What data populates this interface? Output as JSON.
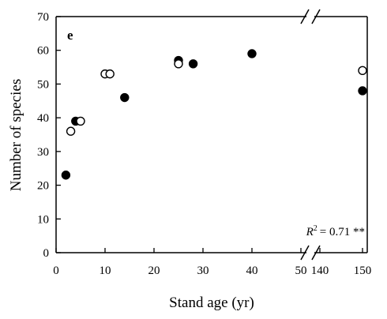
{
  "chart_data": {
    "type": "scatter",
    "panel_label": "e",
    "xlabel": "Stand age (yr)",
    "ylabel": "Number of species",
    "ylim": [
      0,
      70
    ],
    "yticks": [
      "0",
      "10",
      "20",
      "30",
      "40",
      "50",
      "60",
      "70"
    ],
    "xlim": [
      0,
      50
    ],
    "xticks": [
      "0",
      "10",
      "20",
      "30",
      "40",
      "50"
    ],
    "x_break_segment": {
      "xlim": [
        140,
        150
      ],
      "xticks": [
        "140",
        "150"
      ]
    },
    "axis_break": true,
    "grid": false,
    "annotation": {
      "r_squared_label": "R",
      "r_squared_sup": "2",
      "r_squared_value": "= 0.71 **"
    },
    "series": [
      {
        "marker": "filled-circle",
        "color": "#000000",
        "points": [
          {
            "x": 2,
            "y": 23
          },
          {
            "x": 4,
            "y": 39
          },
          {
            "x": 14,
            "y": 46
          },
          {
            "x": 25,
            "y": 57
          },
          {
            "x": 28,
            "y": 56
          },
          {
            "x": 40,
            "y": 59
          },
          {
            "x": 150,
            "y": 48
          }
        ]
      },
      {
        "marker": "open-circle",
        "color": "#000000",
        "points": [
          {
            "x": 3,
            "y": 36
          },
          {
            "x": 5,
            "y": 39
          },
          {
            "x": 10,
            "y": 53
          },
          {
            "x": 11,
            "y": 53
          },
          {
            "x": 25,
            "y": 56
          },
          {
            "x": 150,
            "y": 54
          }
        ]
      }
    ]
  }
}
